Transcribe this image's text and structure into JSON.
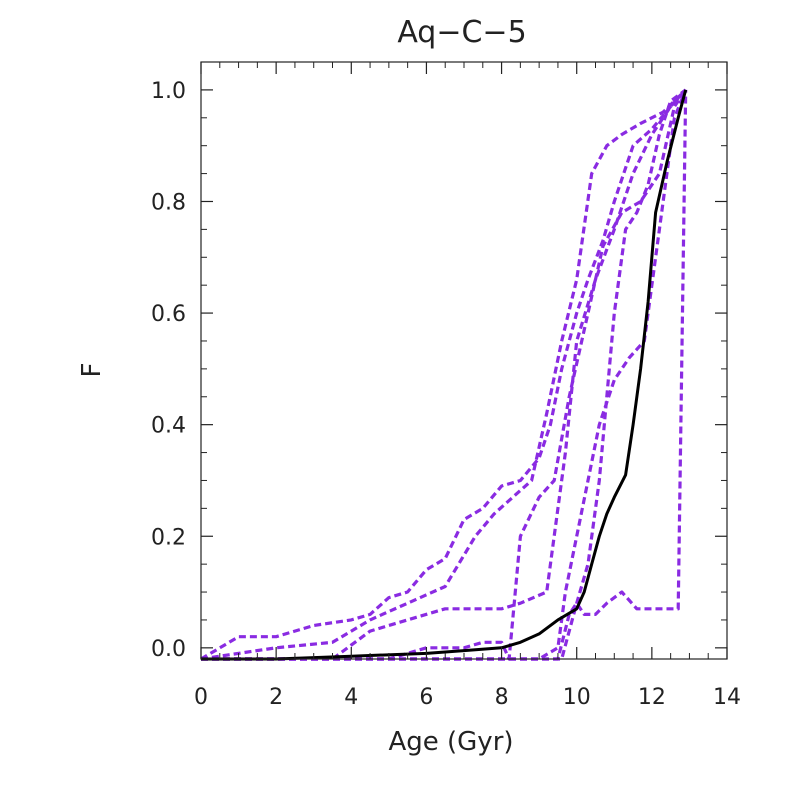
{
  "chart_data": {
    "type": "line",
    "title": "Aq−C−5",
    "xlabel": "Age (Gyr)",
    "ylabel": "F",
    "xlim": [
      0,
      14
    ],
    "ylim": [
      -0.02,
      1.05
    ],
    "xticks": [
      0,
      2,
      4,
      6,
      8,
      10,
      12,
      14
    ],
    "xtick_labels": [
      "0",
      "2",
      "4",
      "6",
      "8",
      "10",
      "12",
      "14"
    ],
    "yticks": [
      0.0,
      0.2,
      0.4,
      0.6,
      0.8,
      1.0
    ],
    "ytick_labels": [
      "0.0",
      "0.2",
      "0.4",
      "0.6",
      "0.8",
      "1.0"
    ],
    "grid": false,
    "legend": "none",
    "colors": {
      "main": "#000000",
      "dashed": "#8a2be2"
    },
    "series": [
      {
        "style": "solid",
        "color": "#000000",
        "x": [
          0,
          2,
          4,
          6,
          7,
          8,
          8.5,
          9,
          9.5,
          10,
          10.2,
          10.4,
          10.6,
          10.8,
          11,
          11.3,
          11.5,
          11.7,
          11.9,
          12.1,
          12.4,
          12.7,
          12.9
        ],
        "y": [
          -0.02,
          -0.02,
          -0.015,
          -0.01,
          -0.005,
          0.0,
          0.01,
          0.025,
          0.05,
          0.07,
          0.1,
          0.15,
          0.2,
          0.24,
          0.27,
          0.31,
          0.4,
          0.5,
          0.62,
          0.78,
          0.87,
          0.95,
          1.0
        ]
      },
      {
        "style": "dashed",
        "color": "#8a2be2",
        "x": [
          0,
          1,
          2,
          3,
          4,
          4.5,
          5,
          5.5,
          6,
          6.5,
          7,
          7.5,
          8,
          8.5,
          9,
          9.3,
          9.6,
          10,
          10.3,
          10.7,
          11,
          11.5,
          12,
          12.5,
          12.9
        ],
        "y": [
          -0.02,
          0.02,
          0.02,
          0.04,
          0.05,
          0.06,
          0.09,
          0.1,
          0.14,
          0.16,
          0.23,
          0.25,
          0.29,
          0.3,
          0.34,
          0.4,
          0.5,
          0.6,
          0.66,
          0.73,
          0.8,
          0.9,
          0.93,
          0.97,
          1.0
        ]
      },
      {
        "style": "dashed",
        "color": "#8a2be2",
        "x": [
          0,
          2,
          3.5,
          4.5,
          5.5,
          6.5,
          7.3,
          7.8,
          8.3,
          8.8,
          9.2,
          9.6,
          10,
          10.4,
          10.8,
          11.2,
          11.7,
          12.3,
          12.9
        ],
        "y": [
          -0.02,
          0.0,
          0.01,
          0.05,
          0.08,
          0.11,
          0.2,
          0.24,
          0.27,
          0.3,
          0.42,
          0.55,
          0.66,
          0.85,
          0.9,
          0.92,
          0.94,
          0.96,
          1.0
        ]
      },
      {
        "style": "dashed",
        "color": "#8a2be2",
        "x": [
          0,
          3.5,
          4.5,
          5.5,
          6.5,
          7,
          8,
          8.5,
          9.2,
          9.7,
          10,
          10.5,
          11,
          11.5,
          12,
          12.5,
          12.9
        ],
        "y": [
          -0.02,
          -0.02,
          0.03,
          0.05,
          0.07,
          0.07,
          0.07,
          0.08,
          0.1,
          0.35,
          0.55,
          0.66,
          0.75,
          0.85,
          0.92,
          0.97,
          1.0
        ]
      },
      {
        "style": "dashed",
        "color": "#8a2be2",
        "x": [
          0,
          5,
          6,
          7,
          7.5,
          8,
          8.2,
          8.5,
          9,
          9.4,
          9.8,
          10.3,
          10.7,
          11.2,
          11.7,
          12.2,
          12.6,
          12.9
        ],
        "y": [
          -0.02,
          -0.02,
          0.0,
          0.0,
          0.01,
          0.01,
          -0.02,
          0.2,
          0.27,
          0.3,
          0.45,
          0.6,
          0.72,
          0.78,
          0.8,
          0.85,
          0.97,
          1.0
        ]
      },
      {
        "style": "dashed",
        "color": "#8a2be2",
        "x": [
          0,
          8.5,
          9,
          9.5,
          9.7,
          10,
          10.3,
          10.6,
          11,
          11.4,
          11.8,
          12.2,
          12.6,
          12.9
        ],
        "y": [
          -0.02,
          -0.02,
          -0.02,
          0.0,
          0.1,
          0.2,
          0.3,
          0.4,
          0.48,
          0.52,
          0.55,
          0.75,
          0.95,
          1.0
        ]
      },
      {
        "style": "dashed",
        "color": "#8a2be2",
        "x": [
          0,
          9,
          9.6,
          10,
          10.3,
          10.6,
          11,
          11.3,
          11.6,
          11.9,
          12.2,
          12.5,
          12.9
        ],
        "y": [
          -0.02,
          -0.02,
          -0.02,
          0.08,
          0.15,
          0.3,
          0.6,
          0.75,
          0.78,
          0.83,
          0.92,
          0.98,
          1.0
        ]
      },
      {
        "style": "dashed",
        "color": "#8a2be2",
        "x": [
          0,
          9.5,
          9.8,
          10,
          10.2,
          10.5,
          10.8,
          11.2,
          11.6,
          12,
          12.4,
          12.7,
          12.9
        ],
        "y": [
          -0.02,
          -0.02,
          0.06,
          0.08,
          0.06,
          0.06,
          0.08,
          0.1,
          0.07,
          0.07,
          0.07,
          0.07,
          1.0
        ]
      }
    ]
  }
}
